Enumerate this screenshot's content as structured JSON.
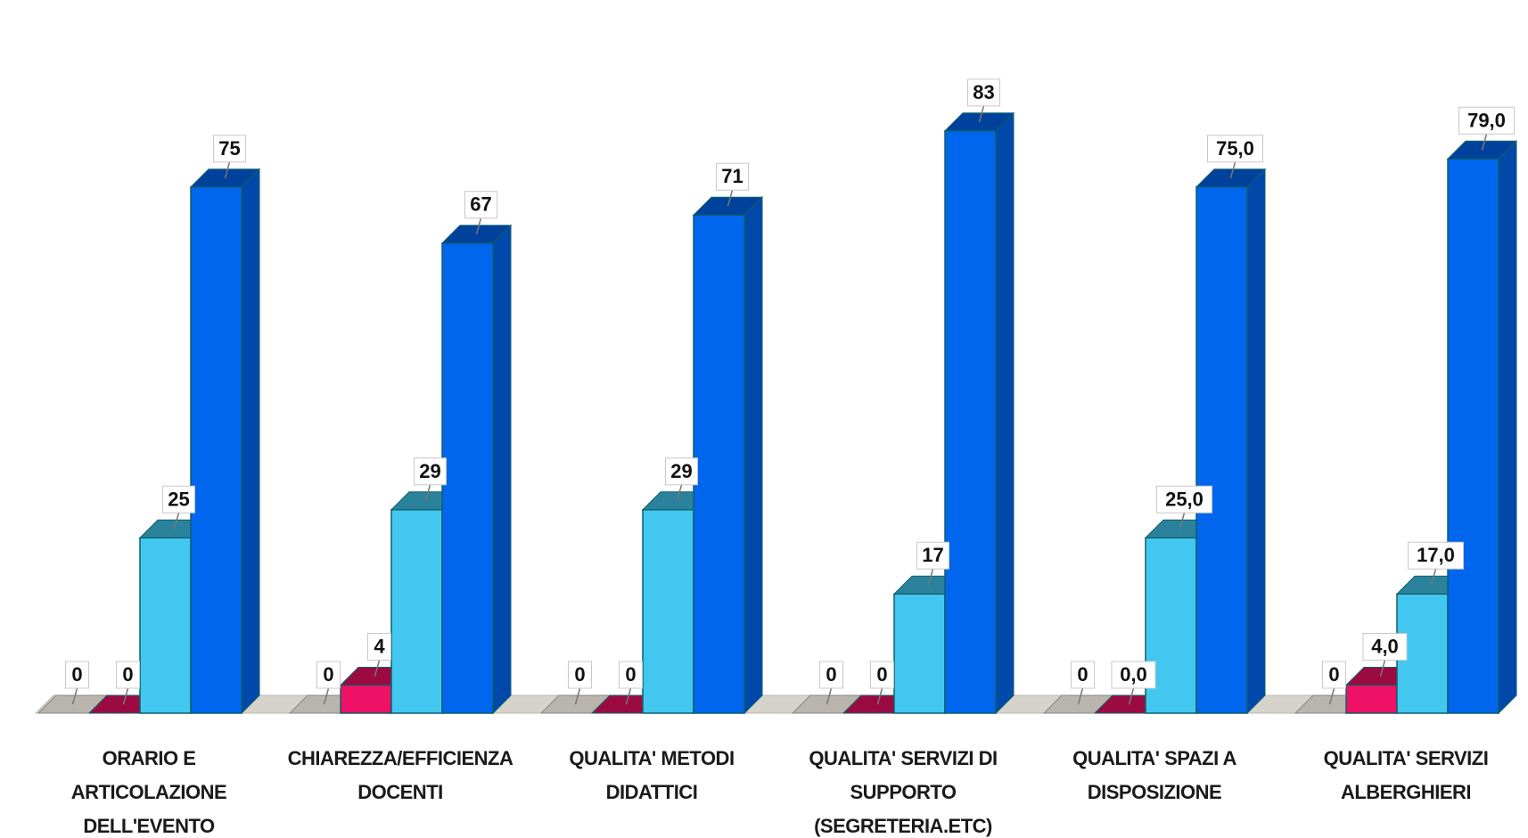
{
  "chart_data": {
    "type": "bar",
    "style": "3d-clustered-column",
    "categories": [
      "ORARIO E ARTICOLAZIONE DELL'EVENTO",
      "CHIAREZZA/EFFICIENZA DOCENTI",
      "QUALITA' METODI DIDATTICI",
      "QUALITA' SERVIZI DI SUPPORTO (SEGRETERIA.ETC)",
      "QUALITA' SPAZI A DISPOSIZIONE",
      "QUALITA' SERVIZI ALBERGHIERI"
    ],
    "category_lines": [
      [
        "ORARIO E",
        "ARTICOLAZIONE",
        "DELL'EVENTO"
      ],
      [
        "CHIAREZZA/EFFICIENZA",
        "DOCENTI"
      ],
      [
        "QUALITA' METODI",
        "DIDATTICI"
      ],
      [
        "QUALITA' SERVIZI DI",
        "SUPPORTO",
        "(SEGRETERIA.ETC)"
      ],
      [
        "QUALITA' SPAZI A",
        "DISPOSIZIONE"
      ],
      [
        "QUALITA' SERVIZI",
        "ALBERGHIERI"
      ]
    ],
    "series": [
      {
        "color": "#b8b4ac",
        "values": [
          0,
          0,
          0,
          0,
          0,
          0
        ],
        "labels": [
          "0",
          "0",
          "0",
          "0",
          "0",
          "0"
        ]
      },
      {
        "color": "#ee1166",
        "values": [
          0,
          4,
          0,
          0,
          0,
          4
        ],
        "labels": [
          "0",
          "4",
          "0",
          "0",
          "0,0",
          "4,0"
        ]
      },
      {
        "color": "#42c8f0",
        "values": [
          25,
          29,
          29,
          17,
          25,
          17
        ],
        "labels": [
          "25",
          "29",
          "29",
          "17",
          "25,0",
          "17,0"
        ]
      },
      {
        "color": "#0066ee",
        "values": [
          75,
          67,
          71,
          83,
          75,
          79
        ],
        "labels": [
          "75",
          "67",
          "71",
          "83",
          "75,0",
          "79,0"
        ]
      }
    ],
    "ylim": [
      0,
      83
    ],
    "grid": false,
    "legend": "none",
    "title": "",
    "xlabel": "",
    "ylabel": ""
  }
}
